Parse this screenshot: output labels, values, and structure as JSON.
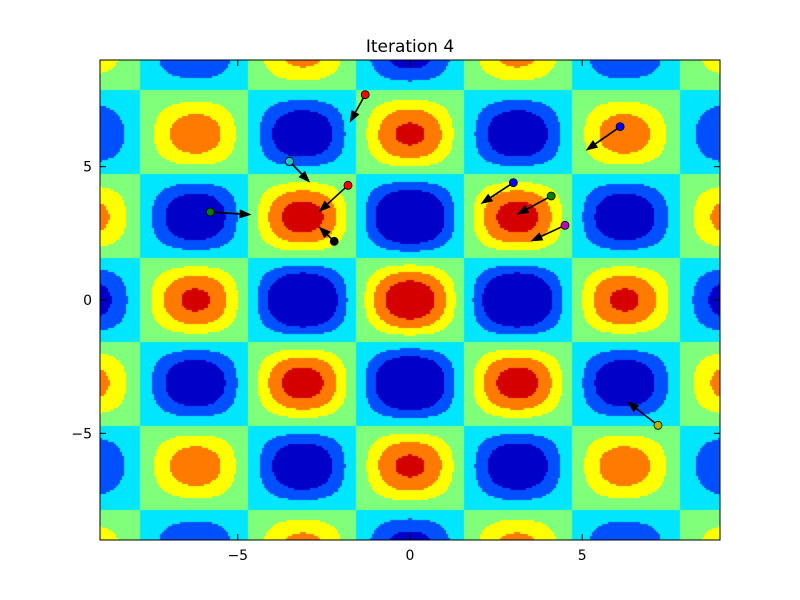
{
  "chart_data": {
    "type": "contour+quiver",
    "title": "Iteration 4",
    "xlabel": "",
    "ylabel": "",
    "xlim": [
      -9,
      9
    ],
    "ylim": [
      -9,
      9
    ],
    "grid": false,
    "legend": "none",
    "xticks": [
      -5,
      0,
      5
    ],
    "yticks": [
      -5,
      0,
      5
    ],
    "xtick_labels": [
      "−5",
      "0",
      "5"
    ],
    "ytick_labels": [
      "−5",
      "0",
      "5"
    ],
    "surface": {
      "function": "cos(x)*cos(y)*exp(-(x^2+y^2)/200)",
      "levels": [
        -1.0,
        -0.75,
        -0.5,
        -0.25,
        0.0,
        0.25,
        0.5,
        0.75,
        1.0
      ],
      "colors": [
        "#0000c8",
        "#0050ff",
        "#00e6ff",
        "#80ff7a",
        "#ffff00",
        "#ff7a00",
        "#d40000"
      ]
    },
    "particles": [
      {
        "x": -1.3,
        "y": 7.7,
        "dx": -0.45,
        "dy": -1.05,
        "color": "#ff0000"
      },
      {
        "x": -3.5,
        "y": 5.2,
        "dx": 0.6,
        "dy": -0.8,
        "color": "#1cc8b8"
      },
      {
        "x": -1.8,
        "y": 4.3,
        "dx": -0.85,
        "dy": -1.0,
        "color": "#ff0000"
      },
      {
        "x": -5.8,
        "y": 3.3,
        "dx": 1.2,
        "dy": -0.1,
        "color": "#008000"
      },
      {
        "x": -2.2,
        "y": 2.2,
        "dx": -0.45,
        "dy": 0.55,
        "color": "#000000"
      },
      {
        "x": 3.0,
        "y": 4.4,
        "dx": -0.95,
        "dy": -0.8,
        "color": "#0000ff"
      },
      {
        "x": 4.1,
        "y": 3.9,
        "dx": -1.0,
        "dy": -0.7,
        "color": "#008000"
      },
      {
        "x": 4.5,
        "y": 2.8,
        "dx": -1.0,
        "dy": -0.6,
        "color": "#c000c0"
      },
      {
        "x": 6.1,
        "y": 6.5,
        "dx": -1.0,
        "dy": -0.9,
        "color": "#0000ff"
      },
      {
        "x": 7.2,
        "y": -4.7,
        "dx": -0.9,
        "dy": 0.9,
        "color": "#b4b400"
      }
    ]
  }
}
